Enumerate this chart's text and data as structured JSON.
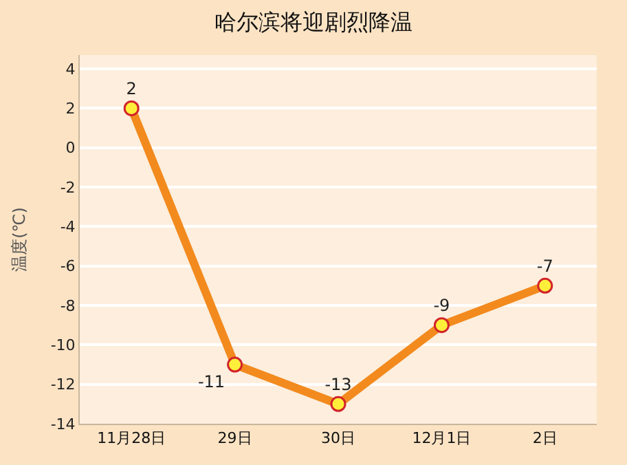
{
  "chart_data": {
    "type": "line",
    "title": "哈尔滨将迎剧烈降温",
    "ylabel": "温度(℃)",
    "categories": [
      "11月28日",
      "29日",
      "30日",
      "12月1日",
      "2日"
    ],
    "series": [
      {
        "color": "#f28a1e",
        "values": [
          2,
          -11,
          -13,
          -9,
          -7
        ]
      }
    ],
    "ylim": [
      -14,
      4.7
    ],
    "yticks": [
      -14,
      -12,
      -10,
      -8,
      -6,
      -4,
      -2,
      0,
      2,
      4
    ],
    "grid": "y",
    "marker": "circle",
    "line_style": "solid",
    "data_labels": true
  }
}
